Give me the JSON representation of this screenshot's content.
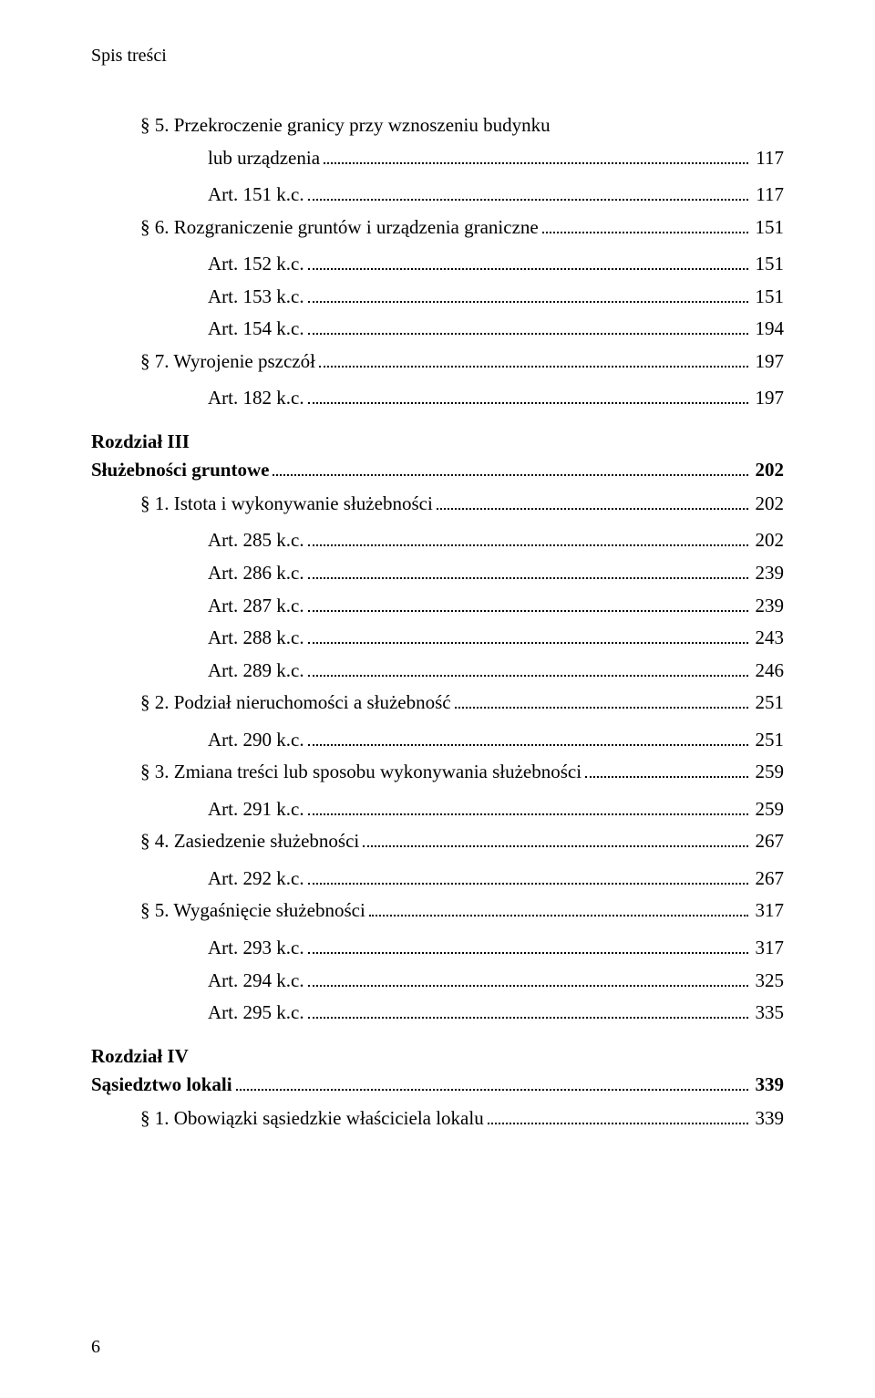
{
  "running_head": "Spis treści",
  "page_number": "6",
  "entries": [
    {
      "kind": "section",
      "indent": 1,
      "label": "§ 5. Przekroczenie granicy przy wznoszeniu budynku",
      "continuation": "lub urządzenia",
      "cont_indent": 2,
      "page": "117"
    },
    {
      "kind": "art",
      "indent": 2,
      "label": "Art. 151 k.c.",
      "page": "117"
    },
    {
      "kind": "section",
      "indent": 1,
      "label": "§ 6. Rozgraniczenie gruntów i urządzenia graniczne",
      "page": "151"
    },
    {
      "kind": "art",
      "indent": 2,
      "label": "Art. 152 k.c.",
      "page": "151"
    },
    {
      "kind": "art",
      "indent": 2,
      "label": "Art. 153 k.c.",
      "page": "151"
    },
    {
      "kind": "art",
      "indent": 2,
      "label": "Art. 154 k.c.",
      "page": "194"
    },
    {
      "kind": "section",
      "indent": 1,
      "label": "§ 7. Wyrojenie pszczół",
      "page": "197"
    },
    {
      "kind": "art",
      "indent": 2,
      "label": "Art. 182 k.c.",
      "page": "197"
    },
    {
      "kind": "chapter",
      "head": "Rozdział III",
      "title": "Służebności gruntowe",
      "page": "202"
    },
    {
      "kind": "section",
      "indent": 1,
      "label": "§ 1. Istota i wykonywanie służebności",
      "page": "202"
    },
    {
      "kind": "art",
      "indent": 2,
      "label": "Art. 285 k.c.",
      "page": "202"
    },
    {
      "kind": "art",
      "indent": 2,
      "label": "Art. 286 k.c.",
      "page": "239"
    },
    {
      "kind": "art",
      "indent": 2,
      "label": "Art. 287 k.c.",
      "page": "239"
    },
    {
      "kind": "art",
      "indent": 2,
      "label": "Art. 288 k.c.",
      "page": "243"
    },
    {
      "kind": "art",
      "indent": 2,
      "label": "Art. 289 k.c.",
      "page": "246"
    },
    {
      "kind": "section",
      "indent": 1,
      "label": "§ 2. Podział nieruchomości a służebność",
      "page": "251"
    },
    {
      "kind": "art",
      "indent": 2,
      "label": "Art. 290 k.c.",
      "page": "251"
    },
    {
      "kind": "section",
      "indent": 1,
      "label": "§ 3. Zmiana treści lub sposobu wykonywania służebności",
      "page": "259"
    },
    {
      "kind": "art",
      "indent": 2,
      "label": "Art. 291 k.c.",
      "page": "259"
    },
    {
      "kind": "section",
      "indent": 1,
      "label": "§ 4. Zasiedzenie służebności",
      "page": "267"
    },
    {
      "kind": "art",
      "indent": 2,
      "label": "Art. 292 k.c.",
      "page": "267"
    },
    {
      "kind": "section",
      "indent": 1,
      "label": "§ 5. Wygaśnięcie służebności",
      "page": "317"
    },
    {
      "kind": "art",
      "indent": 2,
      "label": "Art. 293 k.c.",
      "page": "317"
    },
    {
      "kind": "art",
      "indent": 2,
      "label": "Art. 294 k.c.",
      "page": "325"
    },
    {
      "kind": "art",
      "indent": 2,
      "label": "Art. 295 k.c.",
      "page": "335"
    },
    {
      "kind": "chapter",
      "head": "Rozdział IV",
      "title": "Sąsiedztwo lokali",
      "page": "339"
    },
    {
      "kind": "section",
      "indent": 1,
      "label": "§ 1. Obowiązki sąsiedzkie właściciela lokalu",
      "page": "339"
    }
  ]
}
